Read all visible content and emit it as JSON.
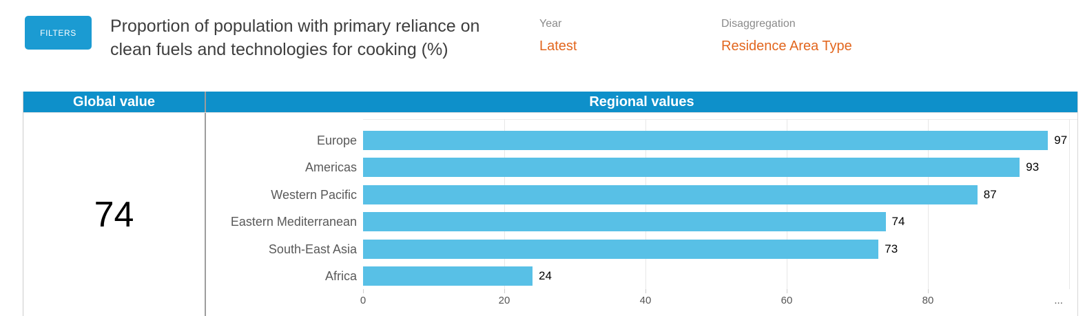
{
  "colors": {
    "filters_blue": "#1b9bd2",
    "header_blue": "#0e90ca",
    "bar_blue": "#58c0e6",
    "accent_orange": "#e2661e"
  },
  "topbar": {
    "filters_label": "FILTERS",
    "title_line1": "Proportion of population with primary reliance on",
    "title_line2": "clean fuels and technologies for cooking (%)",
    "year_label": "Year",
    "year_value": "Latest",
    "disaggregation_label": "Disaggregation",
    "disaggregation_value": "Residence Area Type"
  },
  "panel": {
    "global_header": "Global value",
    "regional_header": "Regional values",
    "global_value": "74"
  },
  "chart_data": {
    "type": "bar",
    "orientation": "horizontal",
    "title": "Regional values",
    "categories": [
      "Europe",
      "Americas",
      "Western Pacific",
      "Eastern Mediterranean",
      "South-East Asia",
      "Africa"
    ],
    "values": [
      97,
      93,
      87,
      74,
      73,
      24
    ],
    "xlabel": "",
    "ylabel": "",
    "xlim": [
      0,
      101.4
    ],
    "grid": true,
    "legend": false,
    "gridline_values": [
      20,
      40,
      60,
      80,
      100
    ],
    "xticks": [
      {
        "label": "0",
        "value": 0,
        "tick_mark": true
      },
      {
        "label": "20",
        "value": 20,
        "tick_mark": true
      },
      {
        "label": "40",
        "value": 40,
        "tick_mark": true
      },
      {
        "label": "60",
        "value": 60,
        "tick_mark": true
      },
      {
        "label": "80",
        "value": 80,
        "tick_mark": true
      },
      {
        "label": "...",
        "value": 98.5,
        "tick_mark": false
      }
    ]
  }
}
